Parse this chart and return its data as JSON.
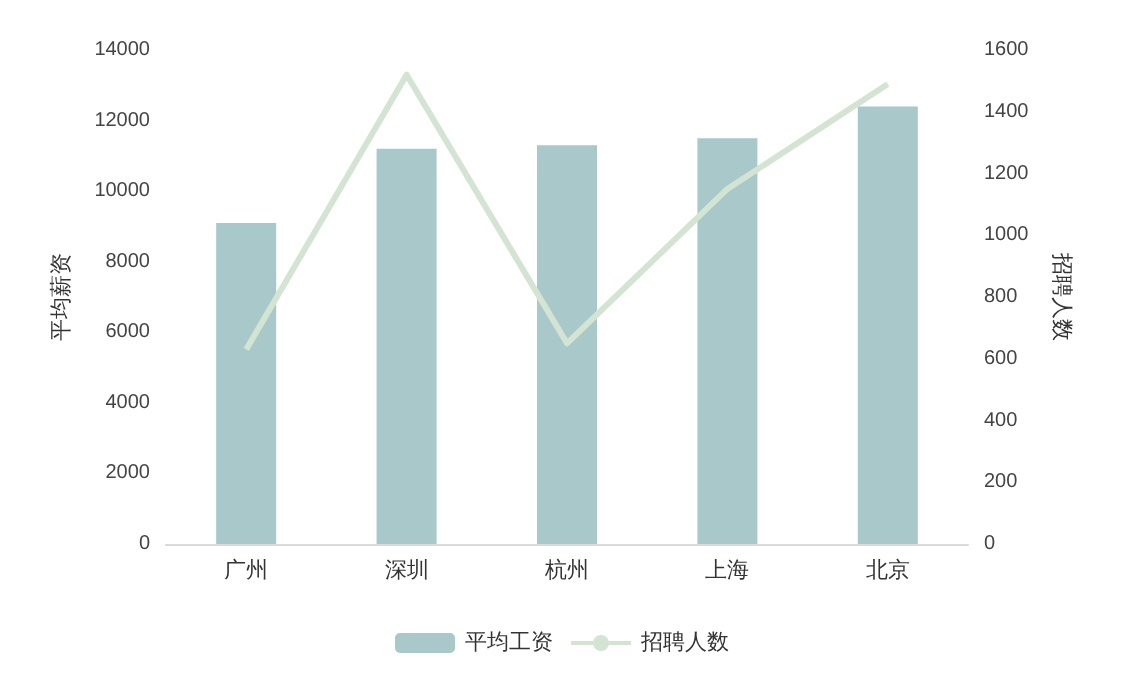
{
  "chart_data": {
    "type": "bar",
    "ylabel": "平均薪资",
    "y2label": "招聘人数",
    "categories": [
      "广州",
      "深圳",
      "杭州",
      "上海",
      "北京"
    ],
    "series": [
      {
        "name": "平均工资",
        "color": "#a8c8ca",
        "values": [
          9100,
          11200,
          11300,
          11500,
          12400
        ]
      },
      {
        "name": "招聘人数",
        "type": "line",
        "axis": "y2",
        "color": "#d3e4d3",
        "values": [
          630,
          1520,
          650,
          1150,
          1490
        ]
      }
    ],
    "ylim": [
      0,
      14000
    ],
    "yticks": [
      0,
      2000,
      4000,
      6000,
      8000,
      10000,
      12000,
      14000
    ],
    "y2lim": [
      0,
      1600
    ],
    "y2ticks": [
      0,
      200,
      400,
      600,
      800,
      1000,
      1200,
      1400,
      1600
    ],
    "legend": "bottom",
    "grid": false,
    "marker": "none"
  }
}
